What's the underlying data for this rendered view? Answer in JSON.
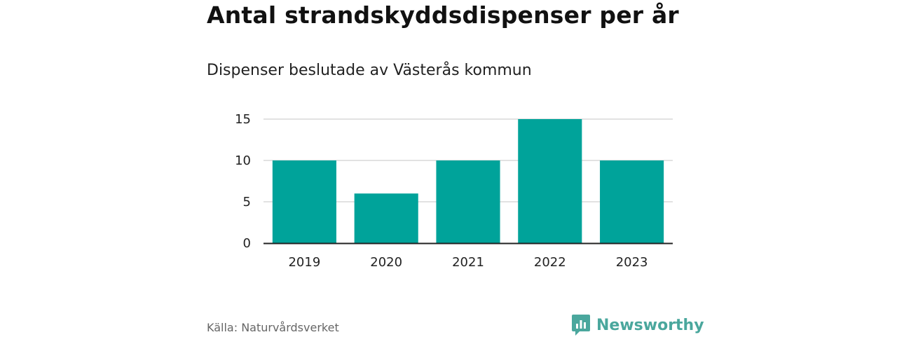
{
  "chart_data": {
    "type": "bar",
    "title": "Antal strandskyddsdispenser per år",
    "subtitle": "Dispenser beslutade av Västerås kommun",
    "categories": [
      "2019",
      "2020",
      "2021",
      "2022",
      "2023"
    ],
    "values": [
      10,
      6,
      10,
      15,
      10
    ],
    "yticks": [
      "0",
      "5",
      "10",
      "15"
    ],
    "ylim": [
      0,
      15
    ],
    "xlabel": "",
    "ylabel": "",
    "grid": true,
    "bar_color": "#00a39a",
    "source": "Källa: Naturvårdsverket"
  },
  "brand": {
    "name": "Newsworthy",
    "icon": "bar-chart-icon",
    "color": "#4aa79d"
  }
}
